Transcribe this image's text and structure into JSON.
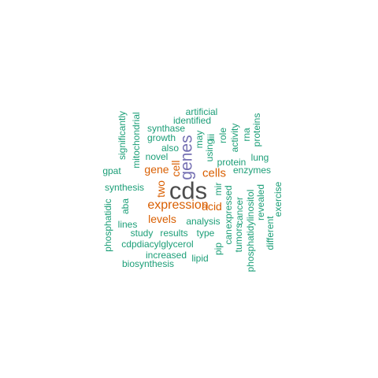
{
  "palette": {
    "dark": "#4d4d4d",
    "purple": "#7570b3",
    "orange": "#d95f02",
    "teal": "#1b9e77"
  },
  "words": {
    "cds": "cds",
    "genes": "genes",
    "expression": "expression",
    "cells": "cells",
    "gene": "gene",
    "cell": "cell",
    "two": "two",
    "levels": "levels",
    "acid": "acid",
    "artificial": "artificial",
    "identified": "identified",
    "synthase": "synthase",
    "growth": "growth",
    "also": "also",
    "novel": "novel",
    "significantly": "significantly",
    "mitochondrial": "mitochondrial",
    "gpat": "gpat",
    "may": "may",
    "using": "using",
    "iii": "iii",
    "role": "role",
    "activity": "activity",
    "rna": "rna",
    "proteins": "proteins",
    "lung": "lung",
    "protein": "protein",
    "enzymes": "enzymes",
    "synthesis": "synthesis",
    "mir": "mir",
    "expressed": "expressed",
    "cancer": "cancer",
    "phosphatidylinositol": "phosphatidylinositol",
    "revealed": "revealed",
    "exercise": "exercise",
    "phosphatidic": "phosphatidic",
    "aba": "aba",
    "lines": "lines",
    "analysis": "analysis",
    "study": "study",
    "results": "results",
    "type": "type",
    "can": "can",
    "tumors": "tumors",
    "different": "different",
    "cdpdiacylglycerol": "cdpdiacylglycerol",
    "pip": "pip",
    "increased": "increased",
    "lipid": "lipid",
    "biosynthesis": "biosynthesis"
  }
}
